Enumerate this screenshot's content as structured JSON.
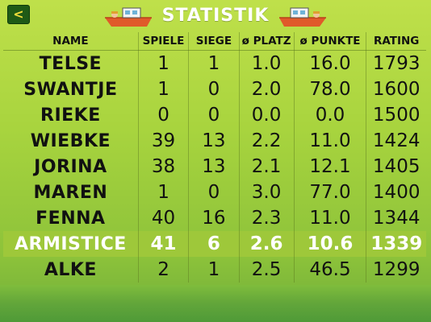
{
  "header": {
    "back_label": "<",
    "title": "STATISTIK"
  },
  "table": {
    "columns": [
      "NAME",
      "SPIELE",
      "SIEGE",
      "ø PLATZ",
      "ø PUNKTE",
      "RATING"
    ],
    "rows": [
      {
        "name": "TELSE",
        "spiele": "1",
        "siege": "1",
        "platz": "1.0",
        "punkte": "16.0",
        "rating": "1793"
      },
      {
        "name": "SWANTJE",
        "spiele": "1",
        "siege": "0",
        "platz": "2.0",
        "punkte": "78.0",
        "rating": "1600"
      },
      {
        "name": "RIEKE",
        "spiele": "0",
        "siege": "0",
        "platz": "0.0",
        "punkte": "0.0",
        "rating": "1500"
      },
      {
        "name": "WIEBKE",
        "spiele": "39",
        "siege": "13",
        "platz": "2.2",
        "punkte": "11.0",
        "rating": "1424"
      },
      {
        "name": "JORINA",
        "spiele": "38",
        "siege": "13",
        "platz": "2.1",
        "punkte": "12.1",
        "rating": "1405"
      },
      {
        "name": "MAREN",
        "spiele": "1",
        "siege": "0",
        "platz": "3.0",
        "punkte": "77.0",
        "rating": "1400"
      },
      {
        "name": "FENNA",
        "spiele": "40",
        "siege": "16",
        "platz": "2.3",
        "punkte": "11.0",
        "rating": "1344"
      },
      {
        "name": "ARMISTICE",
        "spiele": "41",
        "siege": "6",
        "platz": "2.6",
        "punkte": "10.6",
        "rating": "1339",
        "highlight": true
      },
      {
        "name": "ALKE",
        "spiele": "2",
        "siege": "1",
        "platz": "2.5",
        "punkte": "46.5",
        "rating": "1299"
      }
    ]
  },
  "colors": {
    "background": "#a8d43e",
    "highlight_row": "#9ec83a",
    "title": "#ffffff",
    "back_button": "#1f5a16",
    "back_arrow": "#f3dc3a",
    "boat": "#e05a2a"
  },
  "icons": {
    "title_left": "boat-icon",
    "title_right": "boat-icon"
  }
}
